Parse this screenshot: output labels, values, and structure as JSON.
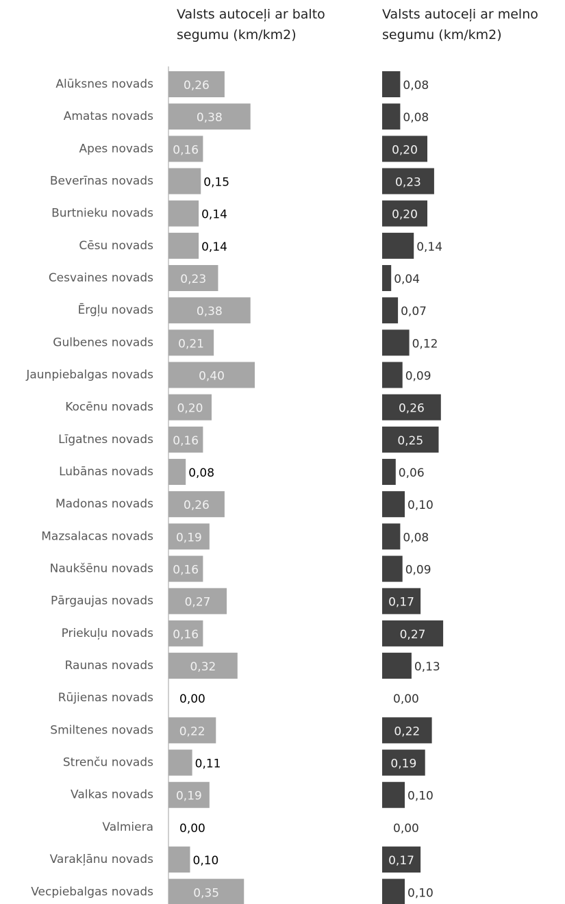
{
  "chart_data": {
    "type": "bar",
    "orientation": "horizontal",
    "categories": [
      "Alūksnes novads",
      "Amatas novads",
      "Apes novads",
      "Beverīnas novads",
      "Burtnieku novads",
      "Cēsu novads",
      "Cesvaines novads",
      "Ērgļu novads",
      "Gulbenes novads",
      "Jaunpiebalgas novads",
      "Kocēnu novads",
      "Līgatnes novads",
      "Lubānas novads",
      "Madonas novads",
      "Mazsalacas novads",
      "Naukšēnu novads",
      "Pārgaujas novads",
      "Priekuļu novads",
      "Raunas novads",
      "Rūjienas novads",
      "Smiltenes novads",
      "Strenču novads",
      "Valkas novads",
      "Valmiera",
      "Varakļānu novads",
      "Vecpiebalgas novads"
    ],
    "series": [
      {
        "name": "Valsts autoceļi ar balto segumu (km/km2)",
        "color": "#a6a6a6",
        "values": [
          0.26,
          0.38,
          0.16,
          0.15,
          0.14,
          0.14,
          0.23,
          0.38,
          0.21,
          0.4,
          0.2,
          0.16,
          0.08,
          0.26,
          0.19,
          0.16,
          0.27,
          0.16,
          0.32,
          0,
          0.22,
          0.11,
          0.19,
          0,
          0.1,
          0.35
        ],
        "value_labels": [
          "0,26",
          "0,38",
          "0,16",
          "0,15",
          "0,14",
          "0,14",
          "0,23",
          "0,38",
          "0,21",
          "0,40",
          "0,20",
          "0,16",
          "0,08",
          "0,26",
          "0,19",
          "0,16",
          "0,27",
          "0,16",
          "0,32",
          "0,00",
          "0,22",
          "0,11",
          "0,19",
          "0,00",
          "0,10",
          "0,35"
        ]
      },
      {
        "name": "Valsts autoceļi ar melno segumu (km/km2)",
        "color": "#404040",
        "values": [
          0.08,
          0.08,
          0.2,
          0.23,
          0.2,
          0.14,
          0.04,
          0.07,
          0.12,
          0.09,
          0.26,
          0.25,
          0.06,
          0.1,
          0.08,
          0.09,
          0.17,
          0.27,
          0.13,
          0,
          0.22,
          0.19,
          0.1,
          0,
          0.17,
          0.1
        ],
        "value_labels": [
          "0,08",
          "0,08",
          "0,20",
          "0,23",
          "0,20",
          "0,14",
          "0,04",
          "0,07",
          "0,12",
          "0,09",
          "0,26",
          "0,25",
          "0,06",
          "0,10",
          "0,08",
          "0,09",
          "0,17",
          "0,27",
          "0,13",
          "0,00",
          "0,22",
          "0,19",
          "0,10",
          "0,00",
          "0,17",
          "0,10"
        ]
      }
    ],
    "xlim": [
      0,
      0.4
    ]
  }
}
